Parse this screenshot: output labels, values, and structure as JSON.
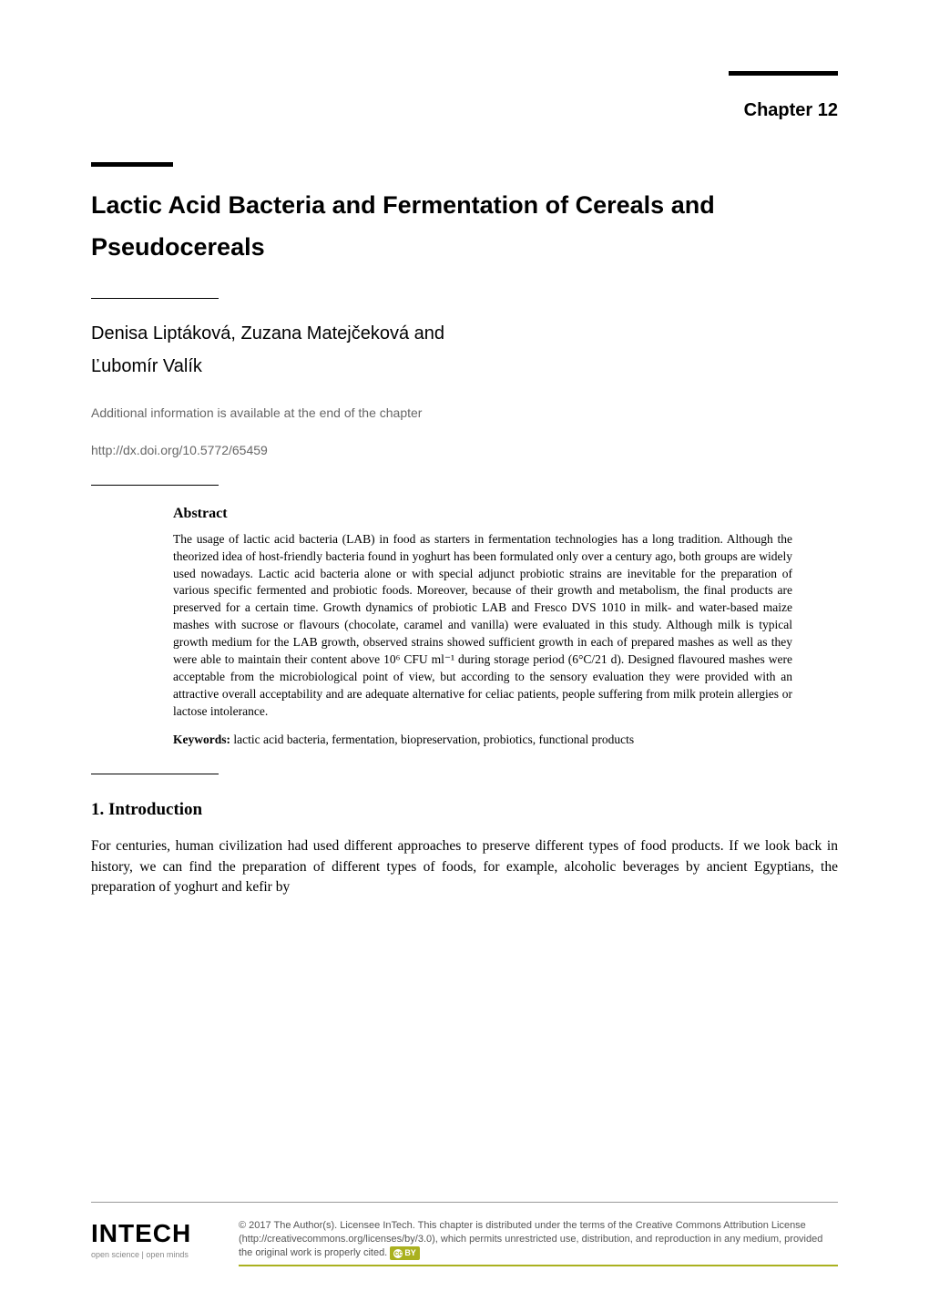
{
  "chapter_label": "Chapter 12",
  "title": "Lactic Acid Bacteria and Fermentation of Cereals and Pseudocereals",
  "authors_line1": "Denisa Liptáková, Zuzana Matejčeková and",
  "authors_line2": "Ľubomír Valík",
  "additional_info": "Additional information is available at the end of the chapter",
  "doi": "http://dx.doi.org/10.5772/65459",
  "abstract": {
    "heading": "Abstract",
    "text": "The usage of lactic acid bacteria (LAB) in food as starters in fermentation technologies has a long tradition. Although the theorized idea of host-friendly bacteria found in yoghurt has been formulated only over a century ago, both groups are widely used nowadays. Lactic acid bacteria alone or with special adjunct probiotic strains are inevitable for the preparation of various specific fermented and probiotic foods. Moreover, because of their growth and metabolism, the final products are preserved for a certain time. Growth dynamics of probiotic LAB and Fresco DVS 1010 in milk- and water-based maize mashes with sucrose or flavours (chocolate, caramel and vanilla) were evaluated in this study. Although milk is typical growth medium for the LAB growth, observed strains showed sufficient growth in each of prepared mashes as well as they were able to maintain their content above 10⁶ CFU ml⁻¹ during storage period (6°C/21 d). Designed flavoured mashes were acceptable from the microbiological point of view, but according to the sensory evaluation they were provided with an attractive overall acceptability and are adequate alternative for celiac patients, people suffering from milk protein allergies or lactose intolerance.",
    "keywords_label": "Keywords:",
    "keywords": " lactic acid bacteria, fermentation, biopreservation, probiotics, functional products"
  },
  "section": {
    "heading": "1. Introduction",
    "body": "For centuries, human civilization had used different approaches to preserve different types of food products. If we look back in history, we can find the preparation of different types of foods, for example, alcoholic beverages by ancient Egyptians, the preparation of yoghurt and kefir by"
  },
  "footer": {
    "logo": "INTECH",
    "tagline": "open science | open minds",
    "license": "© 2017 The Author(s). Licensee InTech. This chapter is distributed under the terms of the Creative Commons Attribution License (http://creativecommons.org/licenses/by/3.0), which permits unrestricted use, distribution, and reproduction in any medium, provided the original work is properly cited.",
    "cc_label": "BY"
  },
  "colors": {
    "text": "#000000",
    "muted": "#666666",
    "footer_text": "#555555",
    "accent": "#aab11f",
    "rule_grey": "#999999",
    "background": "#ffffff"
  },
  "typography": {
    "chapter_label_pt": 20,
    "title_pt": 27,
    "authors_pt": 20,
    "meta_pt": 14,
    "abstract_pt": 13.5,
    "section_heading_pt": 19,
    "body_pt": 15.5,
    "footer_pt": 11
  }
}
